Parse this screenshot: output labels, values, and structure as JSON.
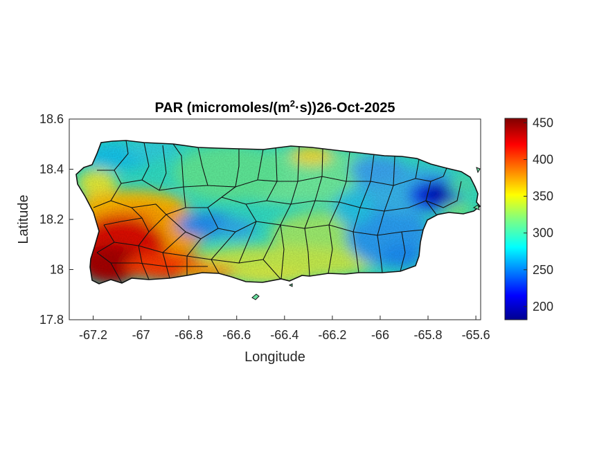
{
  "figure": {
    "title_prefix": "PAR (micromoles/(m",
    "title_sup": "2",
    "title_suffix": "·s))26-Oct-2025",
    "xlabel": "Longitude",
    "ylabel": "Latitude"
  },
  "map": {
    "region": "Puerto Rico",
    "variable": "PAR",
    "date": "26-Oct-2025",
    "xlim": [
      -67.3,
      -65.58
    ],
    "ylim": [
      17.8,
      18.6
    ],
    "xticks": [
      "-67.2",
      "-67",
      "-66.8",
      "-66.6",
      "-66.4",
      "-66.2",
      "-66",
      "-65.8",
      "-65.6"
    ],
    "xtick_values": [
      -67.2,
      -67.0,
      -66.8,
      -66.6,
      -66.4,
      -66.2,
      -66.0,
      -65.8,
      -65.6
    ],
    "yticks": [
      "18.6",
      "18.4",
      "18.2",
      "18"
    ],
    "ytick_values": [
      18.6,
      18.4,
      18.2,
      18.0
    ],
    "ytick_bottom": "17.8",
    "colormap": "jet",
    "colorbar": {
      "range": [
        182,
        456
      ],
      "ticks": [
        "450",
        "400",
        "350",
        "300",
        "250",
        "200"
      ],
      "tick_values": [
        450,
        400,
        350,
        300,
        250,
        200
      ]
    },
    "notable_regions": [
      {
        "name": "southwest",
        "approx_value": 440,
        "color": "#b30000"
      },
      {
        "name": "northeast near -65.75,18.28",
        "approx_value": 200,
        "color": "#0000b4"
      },
      {
        "name": "central",
        "approx_value": 300,
        "color": "#2fd3e0"
      }
    ]
  }
}
